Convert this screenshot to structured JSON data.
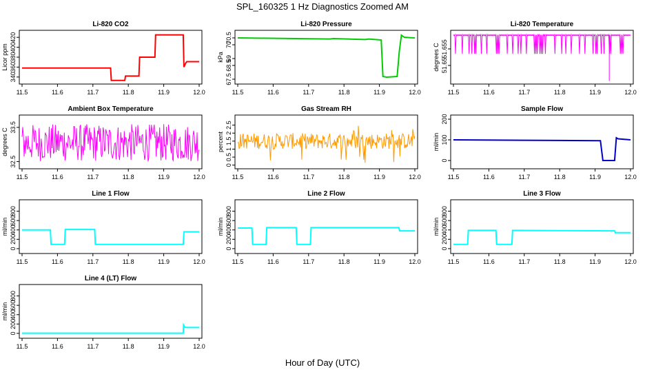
{
  "figure": {
    "title": "SPL_160325  1 Hz Diagnostics Zoomed AM",
    "xlabel": "Hour of Day (UTC)"
  },
  "chart_data": [
    {
      "id": "co2",
      "type": "line",
      "title": "Li-820 CO2",
      "ylabel": "Licor ppm",
      "color": "#ff0000",
      "xlim": [
        11.5,
        12.0
      ],
      "xticks": [
        11.5,
        11.6,
        11.7,
        11.8,
        11.9,
        12.0
      ],
      "ylim": [
        330,
        430
      ],
      "yticks": [
        340,
        360,
        380,
        400,
        420
      ],
      "x": [
        11.5,
        11.75,
        11.752,
        11.79,
        11.792,
        11.83,
        11.832,
        11.875,
        11.877,
        11.955,
        11.957,
        11.962,
        11.965,
        12.0
      ],
      "y": [
        358,
        358,
        333,
        333,
        342,
        342,
        380,
        380,
        425,
        425,
        360,
        368,
        371,
        371
      ]
    },
    {
      "id": "pressure",
      "type": "line",
      "title": "Li-820 Pressure",
      "ylabel": "kPa",
      "color": "#00cc00",
      "xlim": [
        11.5,
        12.0
      ],
      "xticks": [
        11.5,
        11.6,
        11.7,
        11.8,
        11.9,
        12.0
      ],
      "ylim": [
        67.3,
        70.9
      ],
      "yticks": [
        67.5,
        68.5,
        69.0,
        70.0,
        70.5
      ],
      "x": [
        11.5,
        11.76,
        11.77,
        11.86,
        11.87,
        11.905,
        11.91,
        11.92,
        11.95,
        11.956,
        11.962,
        11.97,
        11.985,
        12.0
      ],
      "y": [
        70.5,
        70.42,
        70.45,
        70.38,
        70.42,
        70.35,
        67.7,
        67.65,
        67.7,
        69.5,
        70.7,
        70.55,
        70.52,
        70.5
      ]
    },
    {
      "id": "licor-temp",
      "type": "line",
      "title": "Li-820 Temperature",
      "ylabel": "degrees C",
      "color": "#ff00ff",
      "xlim": [
        11.5,
        12.0
      ],
      "xticks": [
        11.5,
        11.6,
        11.7,
        11.8,
        11.9,
        12.0
      ],
      "ylim": [
        51.645,
        51.66
      ],
      "yticks": [
        51.65,
        51.655
      ],
      "band": [
        51.6535,
        51.6593
      ],
      "spike": {
        "x": 11.94,
        "y": 51.6453
      }
    },
    {
      "id": "ambient-temp",
      "type": "line",
      "title": "Ambient Box Temperature",
      "ylabel": "degrees C",
      "color": "#ff00ff",
      "xlim": [
        11.5,
        12.0
      ],
      "xticks": [
        11.5,
        11.6,
        11.7,
        11.8,
        11.9,
        12.0
      ],
      "ylim": [
        32.35,
        33.8
      ],
      "yticks": [
        32.5,
        33.5
      ],
      "band": [
        32.5,
        33.6
      ]
    },
    {
      "id": "gas-rh",
      "type": "line",
      "title": "Gas Stream RH",
      "ylabel": "percent",
      "color": "#ff9900",
      "xlim": [
        11.5,
        12.0
      ],
      "xticks": [
        11.5,
        11.6,
        11.7,
        11.8,
        11.9,
        12.0
      ],
      "ylim": [
        -0.1,
        3.0
      ],
      "yticks": [
        0.0,
        0.5,
        1.0,
        1.5,
        2.0,
        2.5
      ],
      "band": [
        1.0,
        2.0
      ]
    },
    {
      "id": "sample-flow",
      "type": "line",
      "title": "Sample Flow",
      "ylabel": "ml/min",
      "color": "#0000cc",
      "xlim": [
        11.5,
        12.0
      ],
      "xticks": [
        11.5,
        11.6,
        11.7,
        11.8,
        11.9,
        12.0
      ],
      "ylim": [
        -30,
        210
      ],
      "yticks": [
        0,
        100,
        200
      ],
      "x": [
        11.5,
        11.7,
        11.8,
        11.915,
        11.922,
        11.955,
        11.96,
        11.965,
        12.0
      ],
      "y": [
        100,
        98,
        97,
        96,
        0,
        0,
        110,
        105,
        100
      ]
    },
    {
      "id": "line1",
      "type": "line",
      "title": "Line 1 Flow",
      "ylabel": "ml/min",
      "color": "#00ffff",
      "xlim": [
        11.5,
        12.0
      ],
      "xticks": [
        11.5,
        11.6,
        11.7,
        11.8,
        11.9,
        12.0
      ],
      "ylim": [
        -60,
        1000
      ],
      "yticks": [
        0,
        200,
        400,
        600,
        800
      ],
      "x": [
        11.5,
        11.58,
        11.582,
        11.62,
        11.622,
        11.705,
        11.707,
        11.955,
        11.957,
        12.0
      ],
      "y": [
        400,
        400,
        90,
        90,
        410,
        410,
        90,
        90,
        360,
        360
      ]
    },
    {
      "id": "line2",
      "type": "line",
      "title": "Line 2 Flow",
      "ylabel": "ml/min",
      "color": "#00ffff",
      "xlim": [
        11.5,
        12.0
      ],
      "xticks": [
        11.5,
        11.6,
        11.7,
        11.8,
        11.9,
        12.0
      ],
      "ylim": [
        -60,
        1000
      ],
      "yticks": [
        0,
        200,
        400,
        600,
        800
      ],
      "x": [
        11.5,
        11.54,
        11.542,
        11.58,
        11.582,
        11.665,
        11.667,
        11.705,
        11.707,
        11.955,
        11.957,
        12.0
      ],
      "y": [
        440,
        440,
        90,
        90,
        450,
        450,
        90,
        90,
        450,
        450,
        380,
        380
      ]
    },
    {
      "id": "line3",
      "type": "line",
      "title": "Line 3 Flow",
      "ylabel": "ml/min",
      "color": "#00ffff",
      "xlim": [
        11.5,
        12.0
      ],
      "xticks": [
        11.5,
        11.6,
        11.7,
        11.8,
        11.9,
        12.0
      ],
      "ylim": [
        -60,
        1000
      ],
      "yticks": [
        0,
        200,
        400,
        600,
        800
      ],
      "x": [
        11.5,
        11.54,
        11.542,
        11.62,
        11.622,
        11.665,
        11.667,
        11.955,
        11.957,
        12.0
      ],
      "y": [
        90,
        90,
        390,
        390,
        90,
        90,
        390,
        380,
        340,
        340
      ]
    },
    {
      "id": "line4",
      "type": "line",
      "title": "Line 4 (LT) Flow",
      "ylabel": "ml/min",
      "color": "#00ffff",
      "xlim": [
        11.5,
        12.0
      ],
      "xticks": [
        11.5,
        11.6,
        11.7,
        11.8,
        11.9,
        12.0
      ],
      "ylim": [
        -60,
        1000
      ],
      "yticks": [
        0,
        200,
        400,
        600,
        800
      ],
      "x": [
        11.5,
        11.955,
        11.956,
        11.96,
        11.965,
        12.0
      ],
      "y": [
        5,
        5,
        180,
        130,
        125,
        125
      ]
    }
  ]
}
